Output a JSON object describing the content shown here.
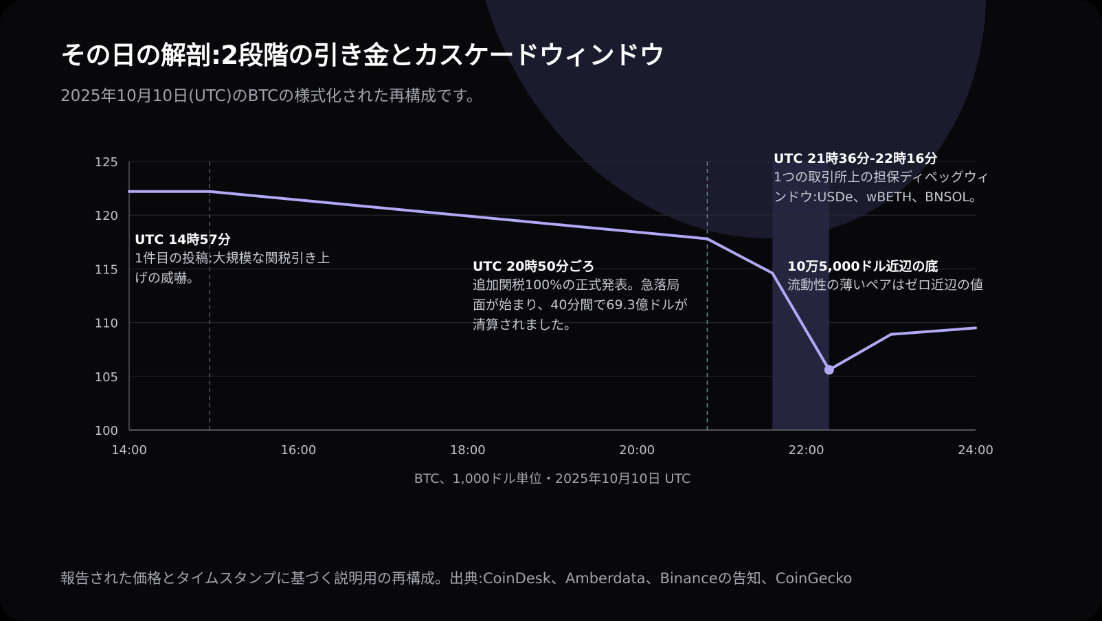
{
  "title": "その日の解剖:2段階の引き金とカスケードウィンドウ",
  "subtitle": "2025年10月10日(UTC)のBTCの様式化された再構成です。",
  "footer": "報告された価格とタイムスタンプに基づく説明用の再構成。出典:CoinDesk、Amberdata、Binanceの告知、CoinGecko",
  "colors": {
    "line": "#b3a8f5",
    "band": "#262540",
    "grid": "#2a2a31",
    "marker_dashed": "#5a5a62",
    "marker_teal": "#5f8f96"
  },
  "chart_data": {
    "type": "line",
    "title": "",
    "xlabel": "BTC、1,000ドル単位・2025年10月10日 UTC",
    "ylabel": "",
    "xlim": [
      14,
      24
    ],
    "ylim": [
      100,
      125
    ],
    "xticks": [
      {
        "value": 14,
        "label": "14:00"
      },
      {
        "value": 16,
        "label": "16:00"
      },
      {
        "value": 18,
        "label": "18:00"
      },
      {
        "value": 20,
        "label": "20:00"
      },
      {
        "value": 22,
        "label": "22:00"
      },
      {
        "value": 24,
        "label": "24:00"
      }
    ],
    "yticks": [
      100,
      105,
      110,
      115,
      120,
      125
    ],
    "grid": true,
    "series": [
      {
        "x": [
          14,
          14.95,
          20.83,
          21.6,
          22.27,
          23.0,
          24.0
        ],
        "y": [
          122.2,
          122.2,
          117.8,
          114.6,
          105.6,
          108.9,
          109.5
        ]
      }
    ],
    "markers": [
      {
        "x": 14.95,
        "style": "dashed"
      },
      {
        "x": 20.83,
        "style": "dashed-teal"
      }
    ],
    "band": {
      "x": [
        21.6,
        22.27
      ]
    },
    "point": {
      "x": 22.27,
      "y": 105.6
    },
    "annotations": [
      {
        "title": "UTC 14時57分",
        "text": "1件目の投稿:大規模な関税引き上げの威嚇。"
      },
      {
        "title": "UTC 20時50分ごろ",
        "text": "追加関税100%の正式発表。急落局面が始まり、40分間で69.3億ドルが清算されました。"
      },
      {
        "title": "UTC 21時36分-22時16分",
        "text": "1つの取引所上の担保ディペッグウィンドウ:USDe、wBETH、BNSOL。"
      },
      {
        "title": "10万5,000ドル近辺の底",
        "text": "流動性の薄いペアはゼロ近辺の値"
      }
    ]
  }
}
